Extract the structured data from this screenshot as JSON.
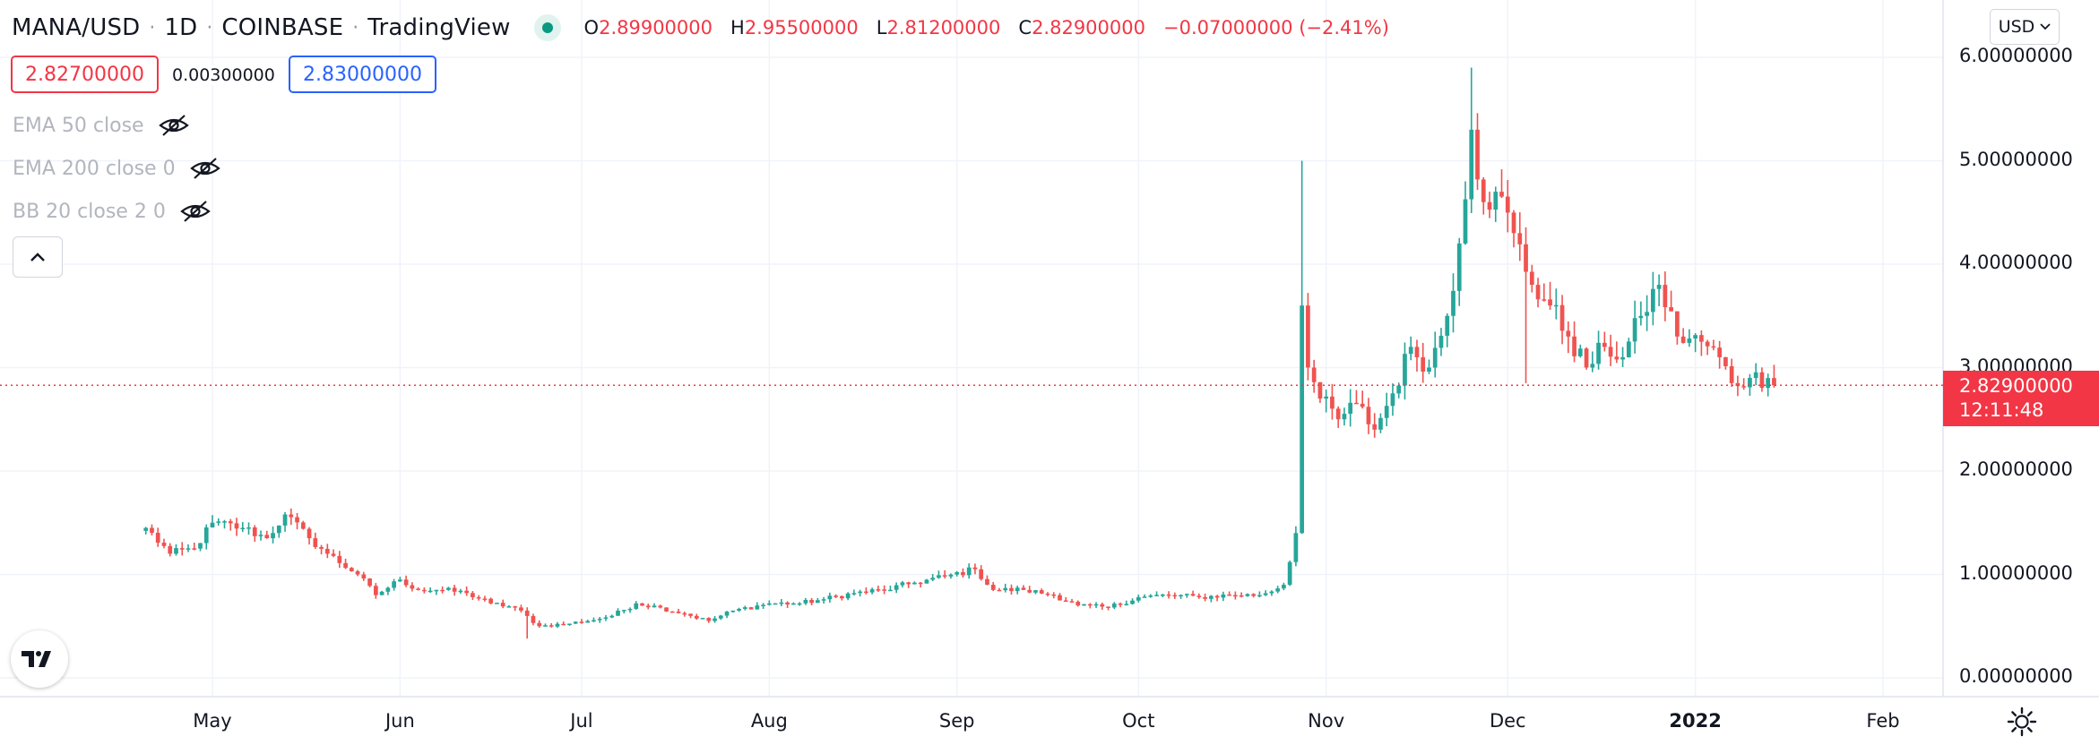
{
  "header": {
    "symbol": "MANA/USD",
    "interval": "1D",
    "exchange": "COINBASE",
    "platform": "TradingView",
    "ohlc": {
      "o_label": "O",
      "o_value": "2.89900000",
      "h_label": "H",
      "h_value": "2.95500000",
      "l_label": "L",
      "l_value": "2.81200000",
      "c_label": "C",
      "c_value": "2.82900000",
      "change": "−0.07000000 (−2.41%)"
    }
  },
  "trade": {
    "bid": "2.82700000",
    "spread": "0.00300000",
    "ask": "2.83000000"
  },
  "indicators": [
    {
      "label": "EMA 50 close",
      "icon": "eye-off-icon"
    },
    {
      "label": "EMA 200 close 0",
      "icon": "eye-off-icon"
    },
    {
      "label": "BB 20 close 2 0",
      "icon": "eye-off-icon"
    }
  ],
  "currency_selector": "USD",
  "last_price": {
    "value": "2.82900000",
    "countdown": "12:11:48"
  },
  "colors": {
    "up": "#26a69a",
    "down": "#ef5350",
    "grid": "#f0f3fa",
    "ask": "#2962ff",
    "accent_red": "#f23645"
  },
  "chart_data": {
    "type": "candlestick",
    "x_axis": {
      "tick_labels": [
        "May",
        "Jun",
        "Jul",
        "Aug",
        "Sep",
        "Oct",
        "Nov",
        "Dec",
        "2022",
        "Feb"
      ],
      "tick_dates": [
        "2021-05-01",
        "2021-06-01",
        "2021-07-01",
        "2021-08-01",
        "2021-09-01",
        "2021-10-01",
        "2021-11-01",
        "2021-12-01",
        "2022-01-01",
        "2022-02-01"
      ],
      "range": [
        "2021-04-09",
        "2022-02-09"
      ]
    },
    "y_axis": {
      "tick_labels": [
        "0.00000000",
        "1.00000000",
        "2.00000000",
        "3.00000000",
        "4.00000000",
        "5.00000000",
        "6.00000000"
      ],
      "range": [
        -0.15,
        6.4
      ],
      "position": "right"
    },
    "grid": true,
    "series_close": [
      {
        "date": "2021-04-20",
        "close": 1.45
      },
      {
        "date": "2021-04-24",
        "close": 1.2
      },
      {
        "date": "2021-04-28",
        "close": 1.25
      },
      {
        "date": "2021-05-01",
        "close": 1.5
      },
      {
        "date": "2021-05-06",
        "close": 1.45
      },
      {
        "date": "2021-05-10",
        "close": 1.35
      },
      {
        "date": "2021-05-13",
        "close": 1.58
      },
      {
        "date": "2021-05-17",
        "close": 1.35
      },
      {
        "date": "2021-05-20",
        "close": 1.2
      },
      {
        "date": "2021-05-25",
        "close": 1.0
      },
      {
        "date": "2021-05-28",
        "close": 0.8
      },
      {
        "date": "2021-06-01",
        "close": 0.95
      },
      {
        "date": "2021-06-04",
        "close": 0.85
      },
      {
        "date": "2021-06-08",
        "close": 0.85
      },
      {
        "date": "2021-06-12",
        "close": 0.82
      },
      {
        "date": "2021-06-16",
        "close": 0.72
      },
      {
        "date": "2021-06-20",
        "close": 0.68
      },
      {
        "date": "2021-06-24",
        "close": 0.5
      },
      {
        "date": "2021-06-28",
        "close": 0.52
      },
      {
        "date": "2021-07-02",
        "close": 0.55
      },
      {
        "date": "2021-07-06",
        "close": 0.6
      },
      {
        "date": "2021-07-10",
        "close": 0.72
      },
      {
        "date": "2021-07-14",
        "close": 0.68
      },
      {
        "date": "2021-07-18",
        "close": 0.62
      },
      {
        "date": "2021-07-22",
        "close": 0.55
      },
      {
        "date": "2021-07-26",
        "close": 0.65
      },
      {
        "date": "2021-08-01",
        "close": 0.72
      },
      {
        "date": "2021-08-06",
        "close": 0.72
      },
      {
        "date": "2021-08-10",
        "close": 0.76
      },
      {
        "date": "2021-08-15",
        "close": 0.82
      },
      {
        "date": "2021-08-20",
        "close": 0.85
      },
      {
        "date": "2021-08-25",
        "close": 0.92
      },
      {
        "date": "2021-08-30",
        "close": 0.98
      },
      {
        "date": "2021-09-04",
        "close": 1.05
      },
      {
        "date": "2021-09-07",
        "close": 0.85
      },
      {
        "date": "2021-09-12",
        "close": 0.85
      },
      {
        "date": "2021-09-17",
        "close": 0.8
      },
      {
        "date": "2021-09-21",
        "close": 0.7
      },
      {
        "date": "2021-09-26",
        "close": 0.68
      },
      {
        "date": "2021-10-01",
        "close": 0.78
      },
      {
        "date": "2021-10-06",
        "close": 0.8
      },
      {
        "date": "2021-10-11",
        "close": 0.78
      },
      {
        "date": "2021-10-16",
        "close": 0.8
      },
      {
        "date": "2021-10-21",
        "close": 0.8
      },
      {
        "date": "2021-10-25",
        "close": 0.9
      },
      {
        "date": "2021-10-27",
        "close": 1.4
      },
      {
        "date": "2021-10-28",
        "close": 3.6
      },
      {
        "date": "2021-10-29",
        "close": 3.0
      },
      {
        "date": "2021-10-31",
        "close": 2.7
      },
      {
        "date": "2021-11-03",
        "close": 2.5
      },
      {
        "date": "2021-11-06",
        "close": 2.65
      },
      {
        "date": "2021-11-09",
        "close": 2.4
      },
      {
        "date": "2021-11-12",
        "close": 2.75
      },
      {
        "date": "2021-11-15",
        "close": 3.2
      },
      {
        "date": "2021-11-18",
        "close": 3.0
      },
      {
        "date": "2021-11-21",
        "close": 3.5
      },
      {
        "date": "2021-11-23",
        "close": 4.2
      },
      {
        "date": "2021-11-25",
        "close": 5.3
      },
      {
        "date": "2021-11-27",
        "close": 4.6
      },
      {
        "date": "2021-11-29",
        "close": 4.7
      },
      {
        "date": "2021-12-02",
        "close": 4.3
      },
      {
        "date": "2021-12-05",
        "close": 3.8
      },
      {
        "date": "2021-12-08",
        "close": 3.6
      },
      {
        "date": "2021-12-11",
        "close": 3.3
      },
      {
        "date": "2021-12-14",
        "close": 3.0
      },
      {
        "date": "2021-12-17",
        "close": 3.2
      },
      {
        "date": "2021-12-20",
        "close": 3.1
      },
      {
        "date": "2021-12-23",
        "close": 3.5
      },
      {
        "date": "2021-12-26",
        "close": 3.8
      },
      {
        "date": "2021-12-29",
        "close": 3.3
      },
      {
        "date": "2022-01-02",
        "close": 3.25
      },
      {
        "date": "2022-01-05",
        "close": 3.1
      },
      {
        "date": "2022-01-07",
        "close": 2.85
      },
      {
        "date": "2022-01-10",
        "close": 2.9
      },
      {
        "date": "2022-01-13",
        "close": 2.899
      },
      {
        "date": "2022-01-14",
        "close": 2.829
      }
    ],
    "notable_extremes": {
      "high": 5.9,
      "low": 0.38
    }
  }
}
